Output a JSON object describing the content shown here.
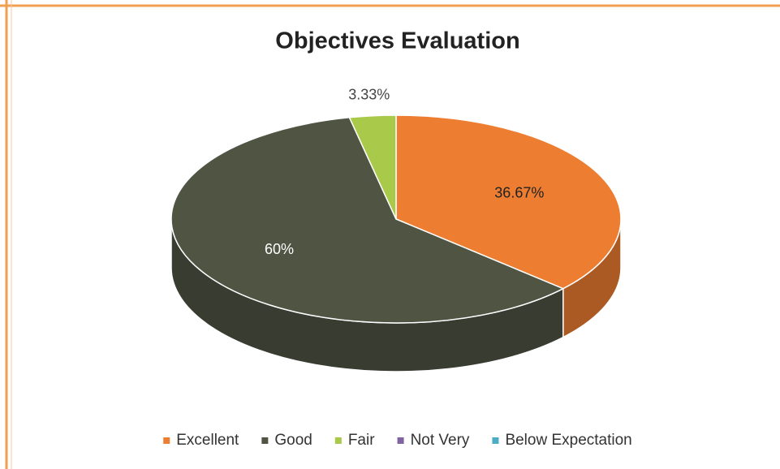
{
  "chart_data": {
    "type": "pie",
    "title": "Objectives Evaluation",
    "categories": [
      "Excellent",
      "Good",
      "Fair",
      "Not Very",
      "Below Expectation"
    ],
    "values": [
      36.67,
      60,
      3.33,
      0,
      0
    ],
    "value_labels": [
      "36.67%",
      "60%",
      "3.33%",
      null,
      null
    ],
    "colors": [
      "#ed7d31",
      "#4f5443",
      "#a9c94a",
      "#8064a2",
      "#4bacc6"
    ],
    "legend": "bottom"
  }
}
